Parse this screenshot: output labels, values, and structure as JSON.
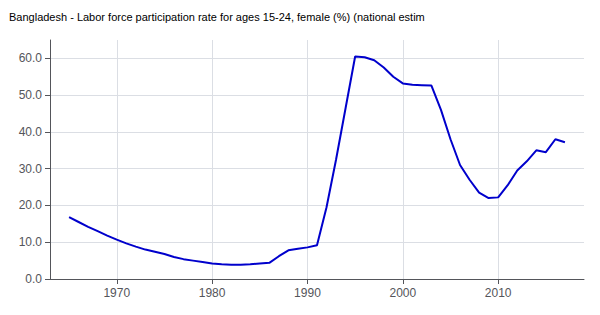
{
  "chart_data": {
    "type": "line",
    "title": "Bangladesh - Labor force participation rate for ages 15-24, female (%) (national estim",
    "color": "#0000cc",
    "x": [
      1965,
      1966,
      1967,
      1968,
      1969,
      1970,
      1971,
      1972,
      1973,
      1974,
      1975,
      1976,
      1977,
      1978,
      1979,
      1980,
      1981,
      1982,
      1983,
      1984,
      1985,
      1986,
      1987,
      1988,
      1989,
      1990,
      1991,
      1992,
      1993,
      1994,
      1995,
      1996,
      1997,
      1998,
      1999,
      2000,
      2001,
      2002,
      2003,
      2004,
      2005,
      2006,
      2007,
      2008,
      2009,
      2010,
      2011,
      2012,
      2013,
      2014,
      2015,
      2016,
      2017
    ],
    "values": [
      16.8,
      15.5,
      14.2,
      13.0,
      11.8,
      10.7,
      9.7,
      8.8,
      8.0,
      7.4,
      6.8,
      6.0,
      5.4,
      5.0,
      4.6,
      4.2,
      4.0,
      3.9,
      3.9,
      4.0,
      4.2,
      4.4,
      6.2,
      7.8,
      8.2,
      8.6,
      9.2,
      19.5,
      32.5,
      46.5,
      60.5,
      60.3,
      59.5,
      57.5,
      55.0,
      53.2,
      52.8,
      52.7,
      52.6,
      46.0,
      38.0,
      31.0,
      27.0,
      23.5,
      22.0,
      22.2,
      25.5,
      29.5,
      32.0,
      35.0,
      34.5,
      38.0,
      37.2
    ],
    "xlim": [
      1963,
      2019
    ],
    "xticks": [
      1970,
      1980,
      1990,
      2000,
      2010
    ],
    "ylim": [
      0.0,
      65.0
    ],
    "yticks": [
      {
        "value": 0,
        "label": "0.0"
      },
      {
        "value": 10,
        "label": "10.0"
      },
      {
        "value": 20,
        "label": "20.0"
      },
      {
        "value": 30,
        "label": "30.0"
      },
      {
        "value": 40,
        "label": "40.0"
      },
      {
        "value": 50,
        "label": "50.0"
      },
      {
        "value": 60,
        "label": "60.0"
      }
    ],
    "grid": true
  }
}
